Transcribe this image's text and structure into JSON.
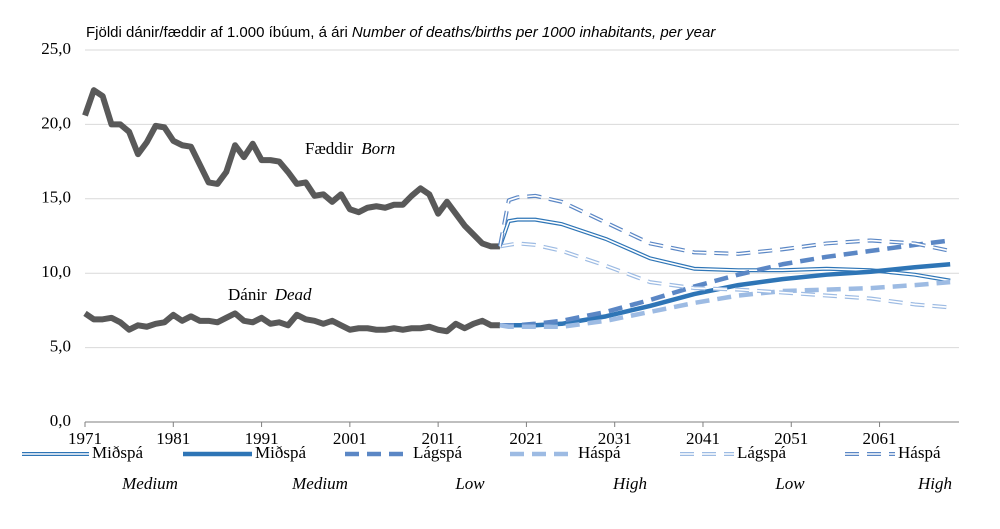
{
  "chart_data": {
    "type": "line",
    "title": "Fjöldi dánir/fæddir af 1.000  íbúum, á ári",
    "subtitle": "Number of deaths/births per 1000 inhabitants, per year",
    "xlim": [
      1971,
      2070
    ],
    "xticks": [
      1971,
      1981,
      1991,
      2001,
      2011,
      2021,
      2031,
      2041,
      2051,
      2061
    ],
    "ylim": [
      0,
      25
    ],
    "yticks": [
      {
        "value": 0,
        "label": "0,0"
      },
      {
        "value": 5,
        "label": "5,0"
      },
      {
        "value": 10,
        "label": "10,0"
      },
      {
        "value": 15,
        "label": "15,0"
      },
      {
        "value": 20,
        "label": "20,0"
      },
      {
        "value": 25,
        "label": "25,0"
      }
    ],
    "grid": true,
    "series": [
      {
        "name": "Fæddir",
        "name_en": "Born",
        "style": "solid-gray",
        "color": "#595959",
        "x": [
          1971,
          1972,
          1973,
          1974,
          1975,
          1976,
          1977,
          1978,
          1979,
          1980,
          1981,
          1982,
          1983,
          1984,
          1985,
          1986,
          1987,
          1988,
          1989,
          1990,
          1991,
          1992,
          1993,
          1994,
          1995,
          1996,
          1997,
          1998,
          1999,
          2000,
          2001,
          2002,
          2003,
          2004,
          2005,
          2006,
          2007,
          2008,
          2009,
          2010,
          2011,
          2012,
          2013,
          2014,
          2015,
          2016,
          2017,
          2018
        ],
        "values": [
          20.6,
          22.3,
          21.9,
          20.0,
          20.0,
          19.5,
          18.0,
          18.8,
          19.9,
          19.8,
          18.9,
          18.6,
          18.5,
          17.3,
          16.1,
          16.0,
          16.8,
          18.6,
          17.8,
          18.7,
          17.6,
          17.6,
          17.5,
          16.8,
          16.0,
          16.1,
          15.2,
          15.3,
          14.8,
          15.3,
          14.3,
          14.1,
          14.4,
          14.5,
          14.4,
          14.6,
          14.6,
          15.2,
          15.7,
          15.3,
          14.0,
          14.8,
          14.0,
          13.2,
          12.6,
          12.0,
          11.8,
          11.8
        ]
      },
      {
        "name": "Dánir",
        "name_en": "Dead",
        "style": "solid-gray",
        "color": "#595959",
        "x": [
          1971,
          1972,
          1973,
          1974,
          1975,
          1976,
          1977,
          1978,
          1979,
          1980,
          1981,
          1982,
          1983,
          1984,
          1985,
          1986,
          1987,
          1988,
          1989,
          1990,
          1991,
          1992,
          1993,
          1994,
          1995,
          1996,
          1997,
          1998,
          1999,
          2000,
          2001,
          2002,
          2003,
          2004,
          2005,
          2006,
          2007,
          2008,
          2009,
          2010,
          2011,
          2012,
          2013,
          2014,
          2015,
          2016,
          2017,
          2018
        ],
        "values": [
          7.3,
          6.9,
          6.9,
          7.0,
          6.7,
          6.2,
          6.5,
          6.4,
          6.6,
          6.7,
          7.2,
          6.8,
          7.1,
          6.8,
          6.8,
          6.7,
          7.0,
          7.3,
          6.8,
          6.7,
          7.0,
          6.6,
          6.7,
          6.5,
          7.2,
          6.9,
          6.8,
          6.6,
          6.8,
          6.5,
          6.2,
          6.3,
          6.3,
          6.2,
          6.2,
          6.3,
          6.2,
          6.3,
          6.3,
          6.4,
          6.2,
          6.1,
          6.6,
          6.3,
          6.6,
          6.8,
          6.5,
          6.5
        ]
      },
      {
        "name": "Miðspá",
        "name_en": "Medium",
        "style": "double",
        "color": "#2e75b6",
        "x": [
          2018,
          2019,
          2020,
          2022,
          2025,
          2030,
          2035,
          2040,
          2045,
          2050,
          2055,
          2060,
          2065,
          2069
        ],
        "values": [
          11.8,
          13.5,
          13.6,
          13.6,
          13.3,
          12.3,
          11.0,
          10.3,
          10.2,
          10.2,
          10.3,
          10.2,
          9.9,
          9.5
        ]
      },
      {
        "name": "Miðspá",
        "name_en": "Medium",
        "style": "solid",
        "color": "#2e75b6",
        "x": [
          2018,
          2019,
          2020,
          2022,
          2025,
          2030,
          2035,
          2040,
          2045,
          2050,
          2055,
          2060,
          2065,
          2069
        ],
        "values": [
          6.5,
          6.5,
          6.5,
          6.5,
          6.6,
          7.1,
          7.8,
          8.6,
          9.2,
          9.6,
          9.9,
          10.1,
          10.4,
          10.6
        ]
      },
      {
        "name": "Lágspá",
        "name_en": "Low",
        "style": "dashed",
        "color": "#5b87c5",
        "x": [
          2018,
          2019,
          2020,
          2022,
          2025,
          2030,
          2035,
          2040,
          2045,
          2050,
          2055,
          2060,
          2065,
          2069
        ],
        "values": [
          6.5,
          6.5,
          6.5,
          6.6,
          6.8,
          7.4,
          8.2,
          9.1,
          9.9,
          10.6,
          11.1,
          11.5,
          11.9,
          12.2
        ]
      },
      {
        "name": "Háspá",
        "name_en": "High",
        "style": "dashed",
        "color": "#9dbbe3",
        "x": [
          2018,
          2019,
          2020,
          2022,
          2025,
          2030,
          2035,
          2040,
          2045,
          2050,
          2055,
          2060,
          2065,
          2069
        ],
        "values": [
          6.5,
          6.4,
          6.4,
          6.4,
          6.4,
          6.8,
          7.4,
          8.0,
          8.5,
          8.8,
          8.9,
          9.0,
          9.2,
          9.4
        ]
      },
      {
        "name": "Lágspá",
        "name_en": "Low",
        "style": "double-dashed",
        "color": "#9dbbe3",
        "x": [
          2018,
          2019,
          2020,
          2022,
          2025,
          2030,
          2035,
          2040,
          2045,
          2050,
          2055,
          2060,
          2065,
          2069
        ],
        "values": [
          11.8,
          11.9,
          12.0,
          11.9,
          11.5,
          10.5,
          9.4,
          9.0,
          8.9,
          8.7,
          8.5,
          8.3,
          7.9,
          7.7
        ]
      },
      {
        "name": "Háspá",
        "name_en": "High",
        "style": "double-dashed",
        "color": "#5b87c5",
        "x": [
          2018,
          2019,
          2020,
          2022,
          2025,
          2030,
          2035,
          2040,
          2045,
          2050,
          2055,
          2060,
          2065,
          2069
        ],
        "values": [
          11.8,
          14.9,
          15.1,
          15.2,
          14.8,
          13.4,
          12.0,
          11.4,
          11.3,
          11.6,
          12.0,
          12.2,
          12.0,
          11.5
        ]
      }
    ]
  }
}
